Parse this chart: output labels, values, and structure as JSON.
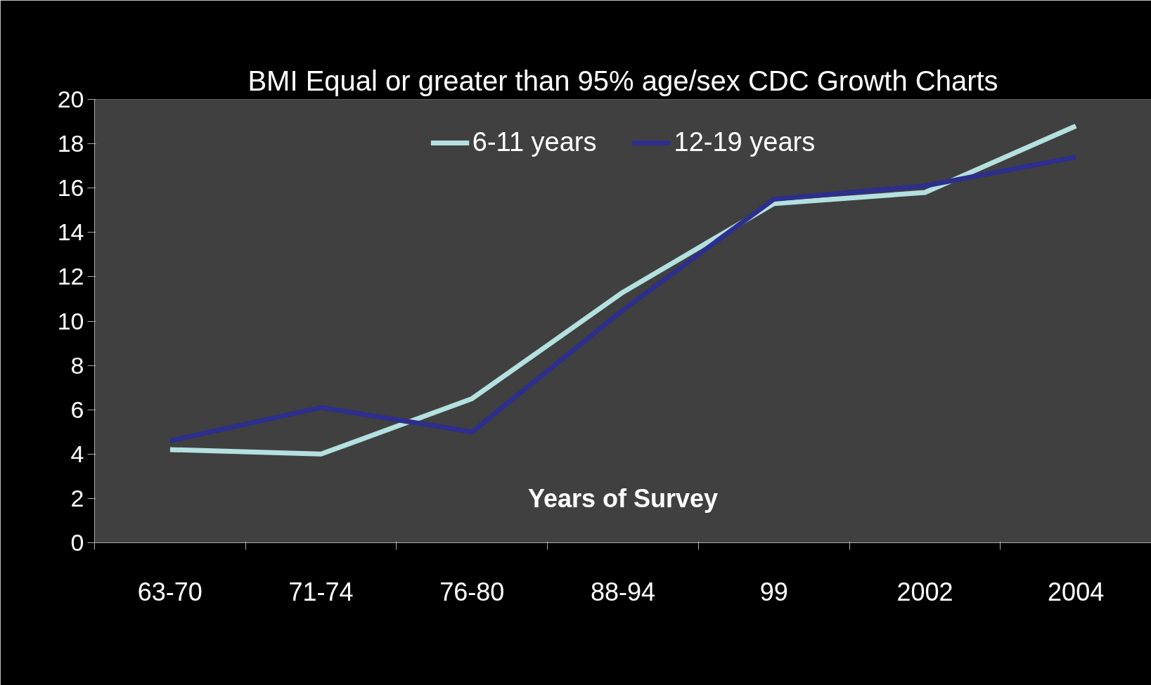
{
  "chart_data": {
    "type": "line",
    "title": "BMI Equal or greater than 95% age/sex CDC Growth Charts",
    "xlabel": "Years of Survey",
    "categories": [
      "63-70",
      "71-74",
      "76-80",
      "88-94",
      "99",
      "2002",
      "2004"
    ],
    "series": [
      {
        "name": "6-11 years",
        "color": "#b4e0e0",
        "values": [
          4.2,
          4.0,
          6.5,
          11.3,
          15.3,
          15.8,
          18.8
        ]
      },
      {
        "name": "12-19 years",
        "color": "#2e2e8c",
        "values": [
          4.6,
          6.1,
          5.0,
          10.5,
          15.5,
          16.1,
          17.4
        ]
      }
    ],
    "ylim": [
      0,
      20
    ],
    "yticks": [
      0,
      2,
      4,
      6,
      8,
      10,
      12,
      14,
      16,
      18,
      20
    ],
    "grid": false,
    "legend": "top",
    "marker": "none",
    "line_style": "solid"
  }
}
